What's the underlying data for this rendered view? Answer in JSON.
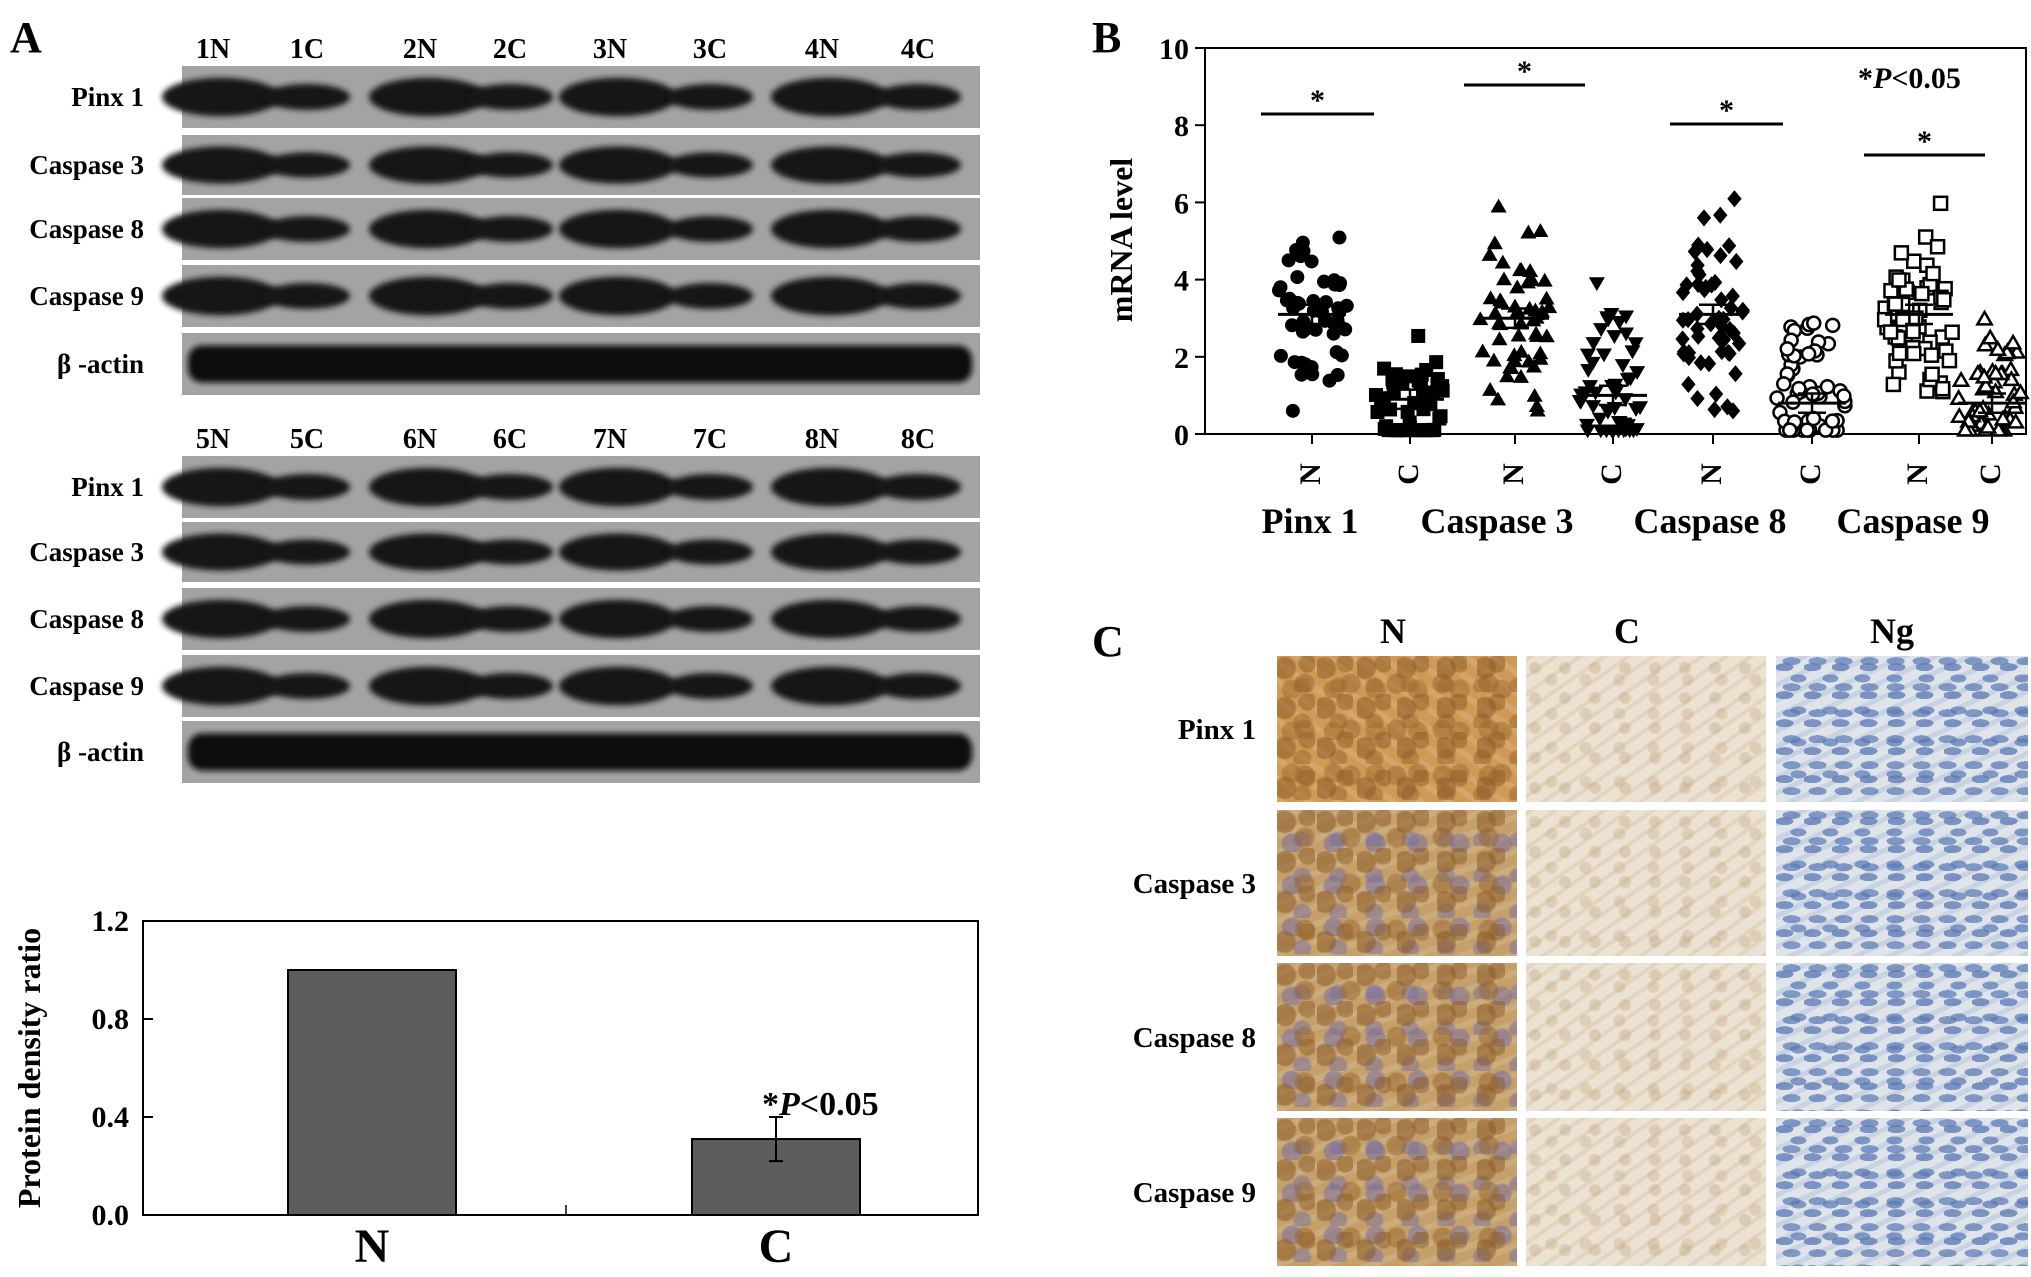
{
  "panel_labels": {
    "a": "A",
    "b": "B",
    "c": "C"
  },
  "western": {
    "top_lanes": [
      "1N",
      "1C",
      "2N",
      "2C",
      "3N",
      "3C",
      "4N",
      "4C"
    ],
    "bottom_lanes": [
      "5N",
      "5C",
      "6N",
      "6C",
      "7N",
      "7C",
      "8N",
      "8C"
    ],
    "rows": [
      "Pinx 1",
      "Caspase 3",
      "Caspase 8",
      "Caspase 9",
      "β -actin"
    ]
  },
  "chart_data": [
    {
      "type": "bar",
      "ylabel": "Protein density ratio",
      "categories": [
        "N",
        "C"
      ],
      "values": [
        1.0,
        0.31
      ],
      "error": [
        0,
        0.09
      ],
      "ylim": [
        0,
        1.2
      ],
      "yticks": [
        "0.0",
        "0.4",
        "0.8",
        "1.2"
      ],
      "annotation": {
        "star": "*",
        "p": "P",
        "text": "<0.05"
      },
      "colors": {
        "bar": "#5d5d5d"
      }
    },
    {
      "type": "scatter",
      "ylabel": "mRNA level",
      "ylim": [
        0,
        10
      ],
      "yticks": [
        "0",
        "2",
        "4",
        "6",
        "8",
        "10"
      ],
      "groups": [
        "Pinx 1",
        "Caspase 3",
        "Caspase 8",
        "Caspase 9"
      ],
      "x_ticklabels": [
        "N",
        "C",
        "N",
        "C",
        "N",
        "C",
        "N",
        "C"
      ],
      "means": [
        3.1,
        0.9,
        3.0,
        1.0,
        3.1,
        0.8,
        3.1,
        0.8
      ],
      "markers": [
        "filled-circle",
        "filled-square",
        "filled-triangle",
        "filled-triangle-down",
        "filled-diamond",
        "open-circle",
        "open-square",
        "open-triangle"
      ],
      "significance": "*",
      "annotation": {
        "star": "*",
        "p": "P",
        "text": "<0.05"
      }
    }
  ],
  "ihc": {
    "columns": [
      "N",
      "C",
      "Ng"
    ],
    "rows": [
      "Pinx 1",
      "Caspase 3",
      "Caspase 8",
      "Caspase 9"
    ],
    "colors": {
      "brown": "#c99650",
      "light": "#ece2d4",
      "blue": "#b5c4dc"
    }
  }
}
